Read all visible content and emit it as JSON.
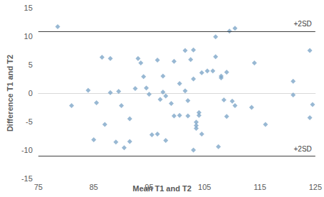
{
  "chart_data": {
    "type": "scatter",
    "xlabel": "Mean T1 and T2",
    "ylabel": "Difference T1 and T2",
    "marker": "diamond",
    "color": "#7ea6c8",
    "grid": false,
    "xlim": [
      75,
      125
    ],
    "xticks": [
      75,
      85,
      95,
      105,
      115,
      125
    ],
    "ylim": [
      -15,
      15
    ],
    "yticks": [
      -15,
      -10,
      -5,
      0,
      5,
      10,
      15
    ],
    "reference_lines": [
      {
        "value": 10.9,
        "label": "+2SD"
      },
      {
        "value": -11,
        "label": "+2SD"
      }
    ],
    "x": [
      78.5,
      81,
      84,
      85,
      85.5,
      86.5,
      87,
      88,
      88,
      89,
      89.5,
      90,
      90.5,
      91.5,
      91.5,
      92.5,
      93,
      93.5,
      94,
      94.5,
      95,
      95.5,
      96.5,
      96.5,
      97,
      97.5,
      97.5,
      98,
      98,
      99,
      99.5,
      99.5,
      100.5,
      100.5,
      101.5,
      101.5,
      102,
      102,
      102.5,
      103,
      103,
      103,
      103.5,
      103.5,
      103.5,
      104,
      104,
      104.5,
      104.5,
      105.5,
      106.5,
      107,
      107,
      107.5,
      108,
      108,
      108.5,
      109,
      109,
      109.5,
      110.5,
      110,
      110.5,
      113.5,
      114,
      116,
      121,
      121,
      124,
      124,
      124.5
    ],
    "values": [
      11.7,
      -2.2,
      0.5,
      -8.2,
      -1.7,
      6.3,
      -5.5,
      6.1,
      0.1,
      -8.6,
      0.3,
      -2.2,
      -9.6,
      -8.5,
      -4.5,
      0.8,
      6.1,
      5.3,
      2.9,
      0.9,
      -0.2,
      -7.3,
      5.8,
      -7.2,
      -1.1,
      0.2,
      3.0,
      -0.5,
      -8.3,
      -1.8,
      -4.0,
      5.6,
      1.7,
      -3.9,
      7.5,
      0.4,
      -1.3,
      -4.0,
      5.9,
      2.5,
      7.6,
      -10.0,
      -5.1,
      -5.7,
      -6.2,
      -3.9,
      -3.4,
      -7.2,
      3.6,
      3.9,
      3.9,
      9.9,
      6.4,
      -9.4,
      3.0,
      2.7,
      -1.2,
      -4.1,
      3.7,
      10.9,
      11.4,
      -1.4,
      -2.2,
      -2.5,
      5.3,
      -5.5,
      2.1,
      -0.3,
      7.5,
      -4.3,
      -2.0
    ]
  }
}
